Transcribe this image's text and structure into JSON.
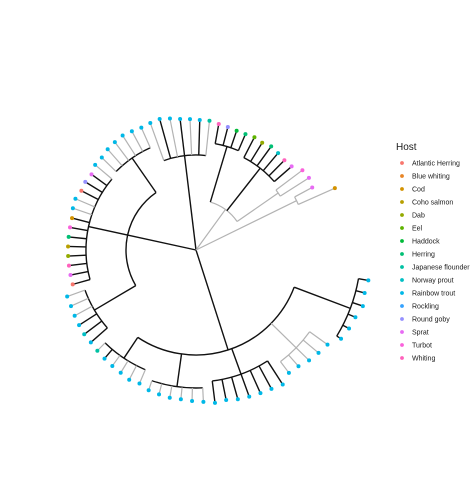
{
  "legend": {
    "title": "Host",
    "items": [
      {
        "label": "Atlantic Herring",
        "color": "#F8766D"
      },
      {
        "label": "Blue whiting",
        "color": "#E88526"
      },
      {
        "label": "Cod",
        "color": "#D39200"
      },
      {
        "label": "Coho salmon",
        "color": "#B79F00"
      },
      {
        "label": "Dab",
        "color": "#93AA00"
      },
      {
        "label": "Eel",
        "color": "#5EB300"
      },
      {
        "label": "Haddock",
        "color": "#00BA38"
      },
      {
        "label": "Herring",
        "color": "#00BF74"
      },
      {
        "label": "Japanese flounder",
        "color": "#00C1A3"
      },
      {
        "label": "Norway prout",
        "color": "#00BFC4"
      },
      {
        "label": "Rainbow trout",
        "color": "#00B8E7"
      },
      {
        "label": "Rockling",
        "color": "#35A2FF"
      },
      {
        "label": "Round goby",
        "color": "#9590FF"
      },
      {
        "label": "Sprat",
        "color": "#E76BF3"
      },
      {
        "label": "Turbot",
        "color": "#FA62DB"
      },
      {
        "label": "Whiting",
        "color": "#FF62BC"
      }
    ]
  },
  "tree": {
    "layout": "circular",
    "branch_colors": {
      "dark": "#111111",
      "light": "#b3b3b3"
    },
    "tip_color_key": "Host"
  }
}
